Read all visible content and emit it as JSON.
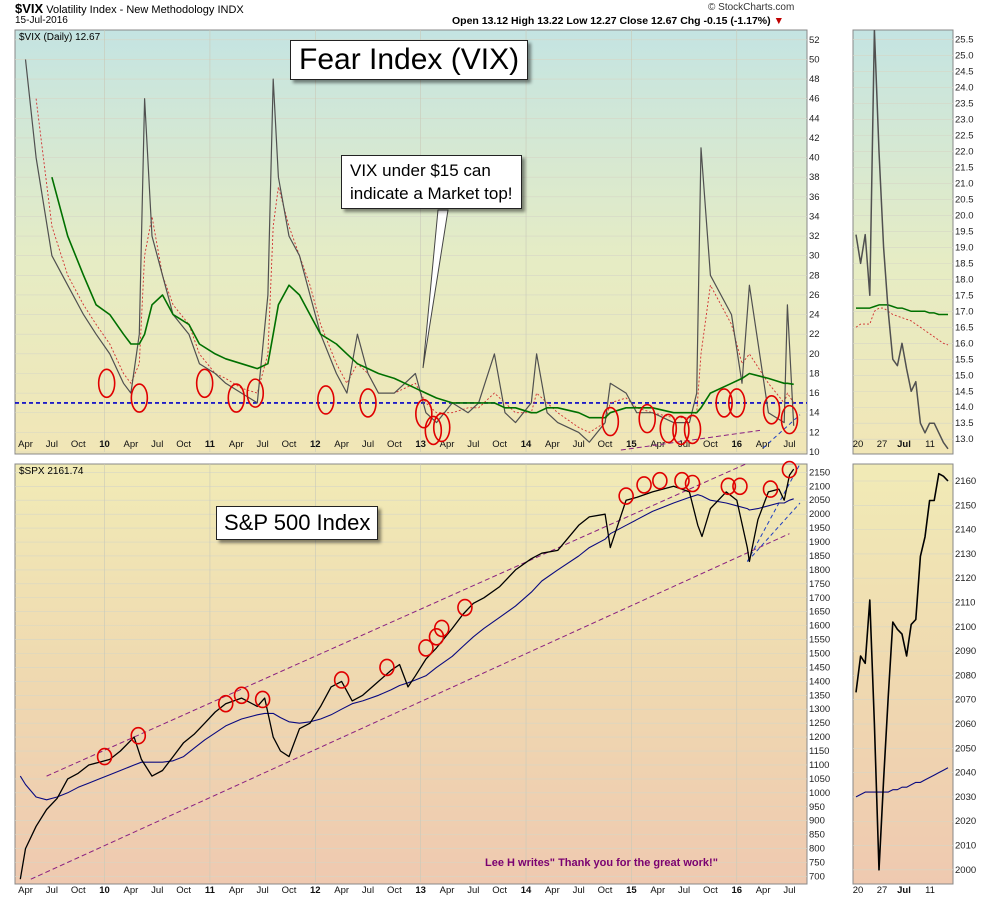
{
  "header": {
    "symbol": "$VIX",
    "name": "Volatility Index - New Methodology",
    "exchange": "INDX",
    "date": "15-Jul-2016",
    "ohlc": "Open 13.12  High 13.22  Low 12.27  Close 12.67  Chg -0.15 (-1.17%)",
    "watermark": "© StockCharts.com",
    "down_color": "#c00000"
  },
  "annotations": {
    "fear_title": "Fear Index (VIX)",
    "sp_title": "S&P 500 Index",
    "vix_note_line1": "VIX under $15 can",
    "vix_note_line2": "indicate a Market top!",
    "credit": "Lee H writes\" Thank you for the great work!\""
  },
  "x_axis": {
    "labels": [
      "Apr",
      "Jul",
      "Oct",
      "10",
      "Apr",
      "Jul",
      "Oct",
      "11",
      "Apr",
      "Jul",
      "Oct",
      "12",
      "Apr",
      "Jul",
      "Oct",
      "13",
      "Apr",
      "Jul",
      "Oct",
      "14",
      "Apr",
      "Jul",
      "Oct",
      "15",
      "Apr",
      "Jul",
      "Oct",
      "16",
      "Apr",
      "Jul"
    ],
    "year_labels": [
      "10",
      "11",
      "12",
      "13",
      "14",
      "15",
      "16"
    ],
    "side_labels": [
      "20",
      "27",
      "Jul",
      "11"
    ]
  },
  "colors": {
    "price": "#505050",
    "sma_long": "#007000",
    "sma_short": "#d03030",
    "threshold": "#0000c8",
    "sp_price": "#000000",
    "sp_sma": "#0a0a80",
    "channel": "#8a2080",
    "circle": "#e00000"
  },
  "chart_data": [
    {
      "type": "line",
      "legend": "$VIX (Daily) 12.67",
      "ylim": [
        10,
        53
      ],
      "yticks": [
        10,
        12,
        14,
        16,
        18,
        20,
        22,
        24,
        26,
        28,
        30,
        32,
        34,
        36,
        38,
        40,
        42,
        44,
        46,
        48,
        50,
        52
      ],
      "threshold": 15,
      "x": [
        2009.25,
        2009.35,
        2009.5,
        2009.65,
        2009.8,
        2009.92,
        2010.05,
        2010.18,
        2010.25,
        2010.33,
        2010.38,
        2010.45,
        2010.55,
        2010.65,
        2010.8,
        2010.9,
        2011.05,
        2011.15,
        2011.3,
        2011.45,
        2011.55,
        2011.6,
        2011.65,
        2011.75,
        2011.85,
        2011.95,
        2012.05,
        2012.2,
        2012.3,
        2012.4,
        2012.5,
        2012.6,
        2012.75,
        2012.85,
        2012.95,
        2013.05,
        2013.15,
        2013.3,
        2013.45,
        2013.55,
        2013.7,
        2013.8,
        2013.9,
        2014.05,
        2014.1,
        2014.2,
        2014.3,
        2014.5,
        2014.6,
        2014.75,
        2014.8,
        2014.95,
        2015.05,
        2015.2,
        2015.4,
        2015.55,
        2015.62,
        2015.66,
        2015.75,
        2015.95,
        2016.05,
        2016.12,
        2016.3,
        2016.45,
        2016.48,
        2016.54
      ],
      "values": [
        50,
        40,
        30,
        27,
        24,
        22,
        20,
        17,
        16,
        22,
        46,
        32,
        28,
        24,
        22,
        19,
        18,
        17,
        16,
        15,
        26,
        48,
        38,
        32,
        30,
        26,
        22,
        18,
        16,
        22,
        18,
        16,
        16,
        17,
        18,
        14,
        13,
        15,
        14,
        15,
        20,
        14,
        13,
        15,
        20,
        14,
        13,
        12,
        11,
        13,
        17,
        16,
        14,
        14,
        13,
        13,
        16,
        41,
        28,
        24,
        17,
        27,
        14,
        13,
        25,
        12.67
      ],
      "series": [
        {
          "name": "MA(200)",
          "values": [
            null,
            null,
            38,
            32,
            28,
            25,
            24,
            22,
            21,
            21,
            22,
            25,
            26,
            24,
            23,
            21,
            20,
            19.5,
            19,
            18.5,
            19,
            22,
            25,
            27,
            26,
            24,
            22,
            21,
            20,
            19,
            18.5,
            18,
            17.5,
            17,
            16.5,
            16,
            15.5,
            15,
            15,
            15,
            15,
            14.5,
            14.5,
            14,
            14,
            14.5,
            14.5,
            14,
            13.5,
            13.5,
            14,
            14.5,
            14.5,
            14.5,
            14,
            14,
            14,
            14.5,
            16,
            17,
            17.5,
            18,
            17.5,
            17,
            17,
            16.9
          ]
        },
        {
          "name": "MA(50)",
          "values": [
            null,
            46,
            33,
            28,
            25,
            23,
            21,
            18,
            17,
            19,
            30,
            34,
            28,
            25,
            23,
            20,
            18,
            17.5,
            16.5,
            16,
            20,
            33,
            37,
            33,
            30,
            27,
            23,
            19,
            17,
            19,
            18,
            16,
            16,
            16.5,
            17,
            15,
            14,
            14,
            14.5,
            14.5,
            16,
            15,
            14,
            14,
            16,
            15,
            14,
            12.5,
            12,
            13,
            15,
            15.5,
            14.5,
            14,
            13.5,
            13.5,
            14,
            20,
            27,
            23,
            19,
            20,
            17,
            15,
            16,
            15
          ]
        }
      ]
    },
    {
      "type": "line",
      "legend": "$SPX 2161.74",
      "ylim": [
        680,
        2180
      ],
      "yticks": [
        700,
        750,
        800,
        850,
        900,
        950,
        1000,
        1050,
        1100,
        1150,
        1200,
        1250,
        1300,
        1350,
        1400,
        1450,
        1500,
        1550,
        1600,
        1650,
        1700,
        1750,
        1800,
        1850,
        1900,
        1950,
        2000,
        2050,
        2100,
        2150
      ],
      "x": [
        2009.2,
        2009.25,
        2009.35,
        2009.45,
        2009.55,
        2009.65,
        2009.75,
        2009.85,
        2009.95,
        2010.05,
        2010.15,
        2010.28,
        2010.35,
        2010.45,
        2010.55,
        2010.65,
        2010.75,
        2010.85,
        2010.95,
        2011.05,
        2011.15,
        2011.3,
        2011.45,
        2011.52,
        2011.6,
        2011.67,
        2011.75,
        2011.85,
        2011.95,
        2012.05,
        2012.15,
        2012.25,
        2012.35,
        2012.45,
        2012.6,
        2012.72,
        2012.8,
        2012.88,
        2012.95,
        2013.05,
        2013.15,
        2013.3,
        2013.4,
        2013.5,
        2013.6,
        2013.75,
        2013.9,
        2014.05,
        2014.15,
        2014.3,
        2014.5,
        2014.6,
        2014.75,
        2014.8,
        2014.95,
        2015.05,
        2015.2,
        2015.4,
        2015.55,
        2015.63,
        2015.67,
        2015.75,
        2015.9,
        2016.0,
        2016.1,
        2016.12,
        2016.2,
        2016.3,
        2016.4,
        2016.45,
        2016.5,
        2016.54
      ],
      "values": [
        690,
        800,
        880,
        940,
        980,
        1050,
        1070,
        1100,
        1110,
        1120,
        1150,
        1200,
        1120,
        1060,
        1080,
        1130,
        1180,
        1210,
        1250,
        1290,
        1320,
        1340,
        1310,
        1340,
        1200,
        1150,
        1130,
        1230,
        1250,
        1310,
        1380,
        1400,
        1330,
        1350,
        1400,
        1440,
        1460,
        1380,
        1420,
        1480,
        1520,
        1590,
        1640,
        1680,
        1700,
        1740,
        1800,
        1840,
        1860,
        1870,
        1960,
        1990,
        2000,
        1880,
        2050,
        2060,
        2080,
        2100,
        2080,
        1960,
        1920,
        2020,
        2080,
        2050,
        1880,
        1830,
        1980,
        2080,
        2090,
        2050,
        2140,
        2161.74
      ],
      "series": [
        {
          "name": "MA(200)",
          "values": [
            1060,
            1030,
            985,
            975,
            985,
            1000,
            1020,
            1035,
            1050,
            1065,
            1080,
            1100,
            1110,
            1110,
            1110,
            1115,
            1130,
            1160,
            1190,
            1215,
            1240,
            1265,
            1280,
            1285,
            1285,
            1270,
            1255,
            1250,
            1255,
            1265,
            1280,
            1300,
            1320,
            1330,
            1350,
            1370,
            1385,
            1395,
            1405,
            1420,
            1450,
            1490,
            1525,
            1560,
            1590,
            1630,
            1670,
            1720,
            1760,
            1800,
            1850,
            1880,
            1910,
            1930,
            1960,
            1980,
            2010,
            2040,
            2060,
            2070,
            2065,
            2050,
            2040,
            2030,
            2020,
            2015,
            2020,
            2030,
            2040,
            2040,
            2050,
            2055
          ]
        }
      ]
    },
    {
      "type": "line",
      "legend": "",
      "ylim": [
        12.6,
        25.8
      ],
      "yticks": [
        13.0,
        13.5,
        14.0,
        14.5,
        15.0,
        15.5,
        16.0,
        16.5,
        17.0,
        17.5,
        18.0,
        18.5,
        19.0,
        19.5,
        20.0,
        20.5,
        21.0,
        21.5,
        22.0,
        22.5,
        23.0,
        23.5,
        24.0,
        24.5,
        25.0,
        25.5
      ],
      "x": [
        0,
        1,
        2,
        3,
        4,
        5,
        6,
        7,
        8,
        9,
        10,
        11,
        12,
        13,
        14,
        15,
        16,
        17,
        18,
        19,
        20
      ],
      "values": [
        19.4,
        18.5,
        19.4,
        17.5,
        25.8,
        22.0,
        19.0,
        17.0,
        15.5,
        15.3,
        16.0,
        15.2,
        14.5,
        14.8,
        13.5,
        13.2,
        13.5,
        13.5,
        13.2,
        12.9,
        12.7
      ],
      "series": [
        {
          "name": "MA(200)",
          "values": [
            17.1,
            17.1,
            17.1,
            17.1,
            17.15,
            17.2,
            17.2,
            17.2,
            17.15,
            17.1,
            17.1,
            17.05,
            17.0,
            17.0,
            17.0,
            17.0,
            16.95,
            16.95,
            16.9,
            16.9,
            16.9
          ]
        },
        {
          "name": "MA(50)",
          "values": [
            16.5,
            16.6,
            16.6,
            16.6,
            17.0,
            17.1,
            17.1,
            17.0,
            16.9,
            16.85,
            16.8,
            16.75,
            16.7,
            16.6,
            16.5,
            16.4,
            16.3,
            16.2,
            16.1,
            16.0,
            15.95
          ]
        }
      ]
    },
    {
      "type": "line",
      "legend": "",
      "ylim": [
        1995,
        2167
      ],
      "yticks": [
        2000,
        2010,
        2020,
        2030,
        2040,
        2050,
        2060,
        2070,
        2080,
        2090,
        2100,
        2110,
        2120,
        2130,
        2140,
        2150,
        2160
      ],
      "x": [
        0,
        1,
        2,
        3,
        4,
        5,
        6,
        7,
        8,
        9,
        10,
        11,
        12,
        13,
        14,
        15,
        16,
        17,
        18,
        19,
        20
      ],
      "values": [
        2073,
        2088,
        2085,
        2111,
        2060,
        2000,
        2037,
        2071,
        2102,
        2099,
        2097,
        2088,
        2101,
        2103,
        2129,
        2137,
        2152,
        2152,
        2163,
        2162,
        2160
      ],
      "series": [
        {
          "name": "MA(200)",
          "values": [
            2030,
            2031,
            2032,
            2032,
            2032,
            2032,
            2032,
            2032,
            2033,
            2033,
            2034,
            2034,
            2035,
            2036,
            2036,
            2037,
            2038,
            2039,
            2040,
            2041,
            2042
          ]
        }
      ]
    }
  ],
  "markers": {
    "vix_circles": [
      [
        2010.02,
        17
      ],
      [
        2010.33,
        15.5
      ],
      [
        2010.95,
        17
      ],
      [
        2011.25,
        15.5
      ],
      [
        2011.43,
        16
      ],
      [
        2012.1,
        15.3
      ],
      [
        2012.5,
        15
      ],
      [
        2013.03,
        13.9
      ],
      [
        2013.12,
        12.2
      ],
      [
        2013.2,
        12.5
      ],
      [
        2014.8,
        13.1
      ],
      [
        2015.15,
        13.4
      ],
      [
        2015.35,
        12.4
      ],
      [
        2015.47,
        12.2
      ],
      [
        2015.58,
        12.3
      ],
      [
        2015.88,
        15
      ],
      [
        2016.0,
        15
      ],
      [
        2016.33,
        14.3
      ],
      [
        2016.5,
        13.3
      ]
    ],
    "spx_circles": [
      [
        2010.0,
        1130
      ],
      [
        2010.32,
        1205
      ],
      [
        2011.15,
        1320
      ],
      [
        2011.3,
        1350
      ],
      [
        2011.5,
        1335
      ],
      [
        2012.25,
        1405
      ],
      [
        2012.68,
        1450
      ],
      [
        2013.05,
        1520
      ],
      [
        2013.15,
        1560
      ],
      [
        2013.2,
        1590
      ],
      [
        2013.42,
        1665
      ],
      [
        2014.95,
        2065
      ],
      [
        2015.12,
        2105
      ],
      [
        2015.27,
        2120
      ],
      [
        2015.48,
        2120
      ],
      [
        2015.58,
        2110
      ],
      [
        2015.92,
        2100
      ],
      [
        2016.03,
        2100
      ],
      [
        2016.32,
        2090
      ],
      [
        2016.5,
        2160
      ]
    ]
  }
}
